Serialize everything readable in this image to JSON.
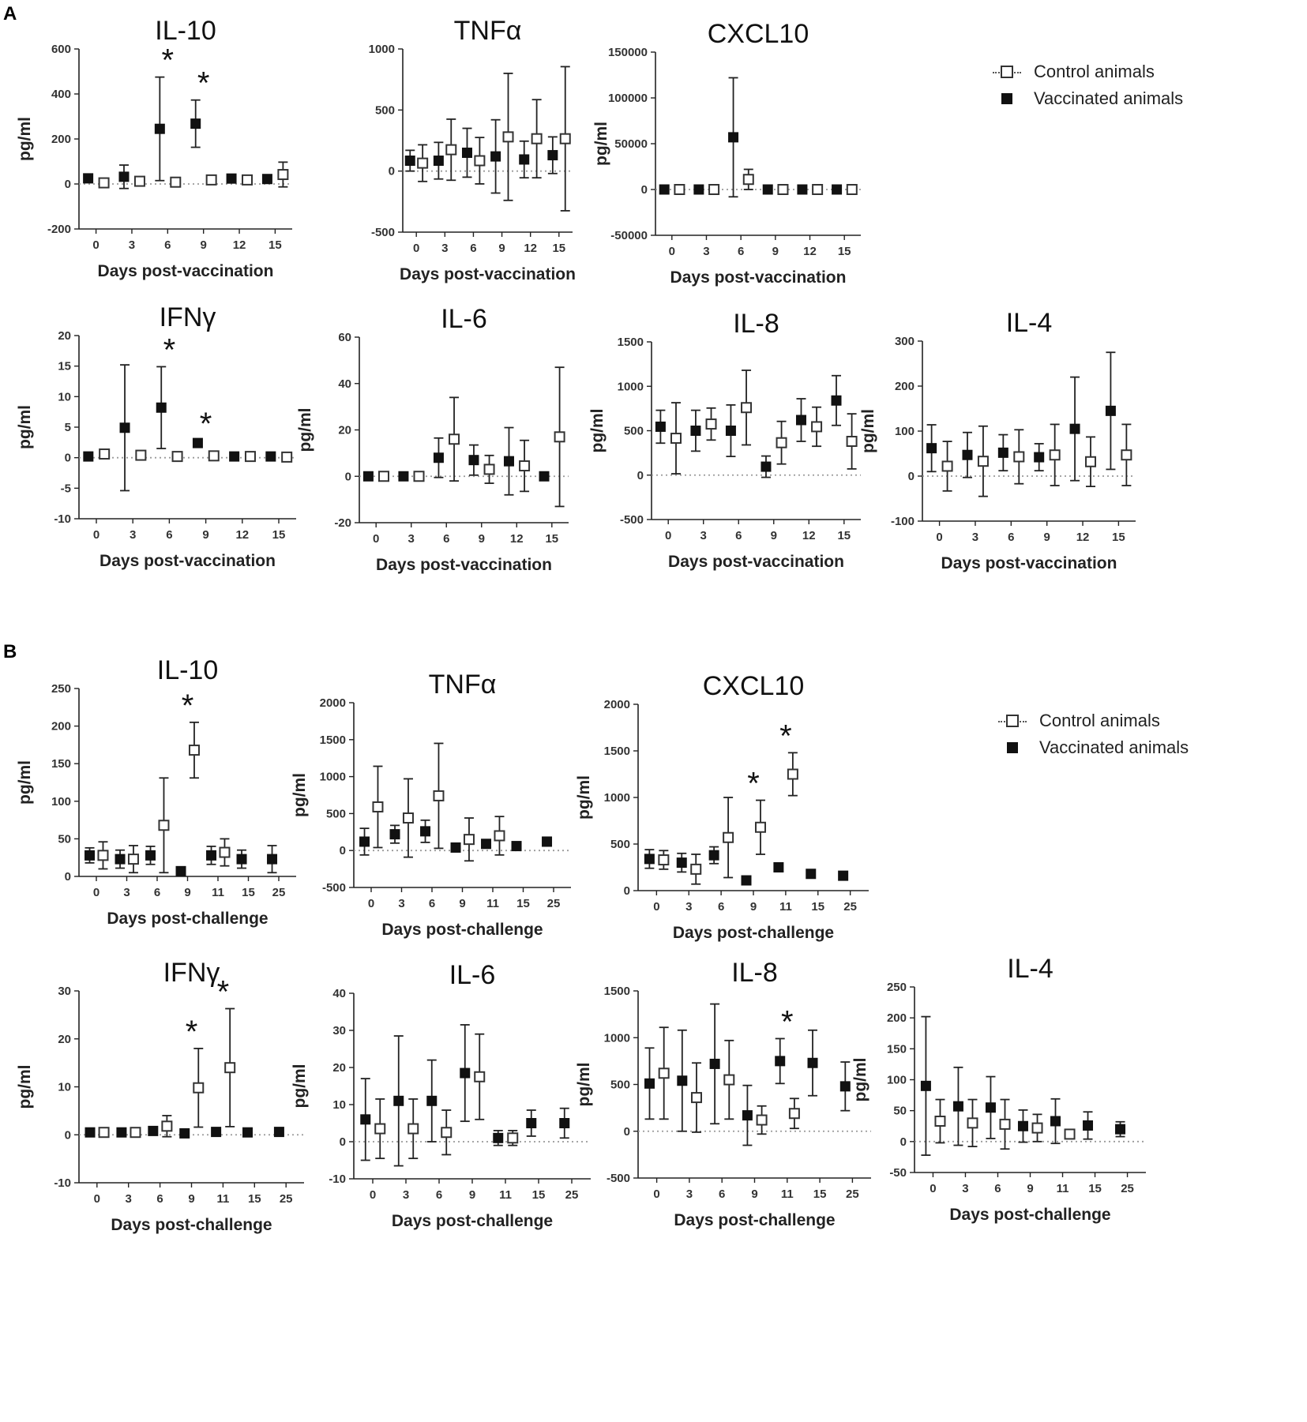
{
  "panel_labels": [
    "A",
    "B"
  ],
  "legend": {
    "control": "Control animals",
    "vaccinated": "Vaccinated animals"
  },
  "colors": {
    "vaccinated": "#111111",
    "control": "#ffffff",
    "stroke": "#333333",
    "zero_line": "#9a9a9a"
  },
  "chart_data": [
    {
      "id": "A-IL10",
      "type": "scatter",
      "title": "IL-10",
      "xlabel": "Days post-vaccination",
      "ylabel": "pg/ml",
      "ylim": [
        -200,
        600
      ],
      "yticks": [
        "-200",
        "0",
        "200",
        "400",
        "600"
      ],
      "xticks": [
        "0",
        "3",
        "6",
        "9",
        "12",
        "15"
      ],
      "series": [
        {
          "name": "Vaccinated animals",
          "values": [
            25,
            32,
            245,
            268,
            24,
            22
          ],
          "err": [
            8,
            52,
            230,
            105,
            8,
            8
          ]
        },
        {
          "name": "Control animals",
          "values": [
            5,
            12,
            8,
            18,
            18,
            42
          ],
          "err": [
            5,
            18,
            8,
            8,
            8,
            55
          ]
        }
      ],
      "stars": [
        {
          "x": "6",
          "label": "*"
        },
        {
          "x": "9",
          "label": "*"
        }
      ]
    },
    {
      "id": "A-TNFa",
      "type": "scatter",
      "title": "TNFα",
      "xlabel": "Days post-vaccination",
      "ylabel": "",
      "ylim": [
        -500,
        1000
      ],
      "yticks": [
        "-500",
        "0",
        "500",
        "1000"
      ],
      "xticks": [
        "0",
        "3",
        "6",
        "9",
        "12",
        "15"
      ],
      "series": [
        {
          "name": "Vaccinated animals",
          "values": [
            85,
            85,
            150,
            120,
            95,
            130
          ],
          "err": [
            85,
            150,
            200,
            300,
            150,
            150
          ]
        },
        {
          "name": "Control animals",
          "values": [
            65,
            175,
            85,
            280,
            265,
            265
          ],
          "err": [
            150,
            250,
            190,
            520,
            320,
            590
          ]
        }
      ],
      "stars": []
    },
    {
      "id": "A-CXCL10",
      "type": "scatter",
      "title": "CXCL10",
      "xlabel": "Days post-vaccination",
      "ylabel": "pg/ml",
      "ylim": [
        -50000,
        150000
      ],
      "yticks": [
        "-50000",
        "0",
        "50000",
        "100000",
        "150000"
      ],
      "xticks": [
        "0",
        "3",
        "6",
        "9",
        "12",
        "15"
      ],
      "series": [
        {
          "name": "Vaccinated animals",
          "values": [
            0,
            0,
            57000,
            0,
            0,
            0
          ],
          "err": [
            0,
            0,
            65000,
            0,
            0,
            0
          ]
        },
        {
          "name": "Control animals",
          "values": [
            0,
            0,
            11000,
            0,
            0,
            0
          ],
          "err": [
            0,
            0,
            11000,
            0,
            0,
            0
          ]
        }
      ],
      "stars": []
    },
    {
      "id": "A-IFNg",
      "type": "scatter",
      "title": "IFNγ",
      "xlabel": "Days post-vaccination",
      "ylabel": "pg/ml",
      "ylim": [
        -10,
        20
      ],
      "yticks": [
        "-10",
        "-5",
        "0",
        "5",
        "10",
        "15",
        "20"
      ],
      "xticks": [
        "0",
        "3",
        "6",
        "9",
        "12",
        "15"
      ],
      "series": [
        {
          "name": "Vaccinated animals",
          "values": [
            0.2,
            4.9,
            8.2,
            2.4,
            0.2,
            0.2
          ],
          "err": [
            0.2,
            10.3,
            6.7,
            0.4,
            0.2,
            0.2
          ]
        },
        {
          "name": "Control animals",
          "values": [
            0.6,
            0.4,
            0.2,
            0.3,
            0.2,
            0.1
          ],
          "err": [
            0.6,
            0.3,
            0.2,
            0.3,
            0.2,
            0.6
          ]
        }
      ],
      "stars": [
        {
          "x": "6",
          "label": "*"
        },
        {
          "x": "9",
          "label": "*"
        }
      ]
    },
    {
      "id": "A-IL6",
      "type": "scatter",
      "title": "IL-6",
      "xlabel": "Days post-vaccination",
      "ylabel": "pg/ml",
      "ylim": [
        -20,
        60
      ],
      "yticks": [
        "-20",
        "0",
        "20",
        "40",
        "60"
      ],
      "xticks": [
        "0",
        "3",
        "6",
        "9",
        "12",
        "15"
      ],
      "series": [
        {
          "name": "Vaccinated animals",
          "values": [
            0,
            0,
            8,
            7,
            6.5,
            0
          ],
          "err": [
            0,
            0,
            8.5,
            6.5,
            14.5,
            0
          ]
        },
        {
          "name": "Control animals",
          "values": [
            0,
            0,
            16,
            3,
            4.5,
            17
          ],
          "err": [
            0,
            0,
            18,
            6,
            11,
            30
          ]
        }
      ],
      "stars": []
    },
    {
      "id": "A-IL8",
      "type": "scatter",
      "title": "IL-8",
      "xlabel": "Days post-vaccination",
      "ylabel": "pg/ml",
      "ylim": [
        -500,
        1500
      ],
      "yticks": [
        "-500",
        "0",
        "500",
        "1000",
        "1500"
      ],
      "xticks": [
        "0",
        "3",
        "6",
        "9",
        "12",
        "15"
      ],
      "series": [
        {
          "name": "Vaccinated animals",
          "values": [
            545,
            500,
            500,
            95,
            620,
            840
          ],
          "err": [
            185,
            230,
            290,
            120,
            240,
            280
          ]
        },
        {
          "name": "Control animals",
          "values": [
            415,
            575,
            760,
            365,
            545,
            380
          ],
          "err": [
            400,
            180,
            420,
            240,
            220,
            310
          ]
        }
      ],
      "stars": []
    },
    {
      "id": "A-IL4",
      "type": "scatter",
      "title": "IL-4",
      "xlabel": "Days post-vaccination",
      "ylabel": "pg/ml",
      "ylim": [
        -100,
        300
      ],
      "yticks": [
        "-100",
        "0",
        "100",
        "200",
        "300"
      ],
      "xticks": [
        "0",
        "3",
        "6",
        "9",
        "12",
        "15"
      ],
      "series": [
        {
          "name": "Vaccinated animals",
          "values": [
            62,
            47,
            52,
            42,
            105,
            145
          ],
          "err": [
            52,
            50,
            40,
            30,
            115,
            130
          ]
        },
        {
          "name": "Control animals",
          "values": [
            22,
            33,
            43,
            47,
            32,
            47
          ],
          "err": [
            55,
            78,
            60,
            68,
            55,
            68
          ]
        }
      ],
      "stars": []
    },
    {
      "id": "B-IL10",
      "type": "scatter",
      "title": "IL-10",
      "xlabel": "Days post-challenge",
      "ylabel": "pg/ml",
      "ylim": [
        0,
        250
      ],
      "yticks": [
        "0",
        "50",
        "100",
        "150",
        "200",
        "250"
      ],
      "xticks": [
        "0",
        "3",
        "6",
        "9",
        "11",
        "15",
        "25"
      ],
      "series": [
        {
          "name": "Vaccinated animals",
          "values": [
            28,
            23,
            28,
            7,
            28,
            23,
            23
          ],
          "err": [
            10,
            12,
            12,
            2,
            12,
            12,
            18
          ]
        },
        {
          "name": "Control animals",
          "values": [
            28,
            23,
            68,
            168,
            32,
            null,
            null
          ],
          "err": [
            18,
            18,
            63,
            37,
            18,
            null,
            null
          ]
        }
      ],
      "stars": [
        {
          "x": "9",
          "label": "*"
        }
      ]
    },
    {
      "id": "B-TNFa",
      "type": "scatter",
      "title": "TNFα",
      "xlabel": "Days post-challenge",
      "ylabel": "pg/ml",
      "ylim": [
        -500,
        2000
      ],
      "yticks": [
        "-500",
        "0",
        "500",
        "1000",
        "1500",
        "2000"
      ],
      "xticks": [
        "0",
        "3",
        "6",
        "9",
        "11",
        "15",
        "25"
      ],
      "series": [
        {
          "name": "Vaccinated animals",
          "values": [
            120,
            220,
            260,
            40,
            90,
            60,
            120
          ],
          "err": [
            180,
            120,
            150,
            20,
            40,
            20,
            60
          ]
        },
        {
          "name": "Control animals",
          "values": [
            590,
            440,
            740,
            150,
            200,
            null,
            null
          ],
          "err": [
            550,
            530,
            710,
            290,
            260,
            null,
            null
          ]
        }
      ],
      "stars": []
    },
    {
      "id": "B-CXCL10",
      "type": "scatter",
      "title": "CXCL10",
      "xlabel": "Days post-challenge",
      "ylabel": "pg/ml",
      "ylim": [
        0,
        2000
      ],
      "yticks": [
        "0",
        "500",
        "1000",
        "1500",
        "2000"
      ],
      "xticks": [
        "0",
        "3",
        "6",
        "9",
        "11",
        "15",
        "25"
      ],
      "series": [
        {
          "name": "Vaccinated animals",
          "values": [
            340,
            300,
            380,
            110,
            250,
            180,
            160
          ],
          "err": [
            100,
            100,
            90,
            20,
            30,
            30,
            30
          ]
        },
        {
          "name": "Control animals",
          "values": [
            330,
            230,
            570,
            680,
            1250,
            null,
            null
          ],
          "err": [
            100,
            160,
            430,
            290,
            230,
            null,
            null
          ]
        }
      ],
      "stars": [
        {
          "x": "9",
          "label": "*"
        },
        {
          "x": "11",
          "label": "*"
        }
      ]
    },
    {
      "id": "B-IFNg",
      "type": "scatter",
      "title": "IFNγ",
      "xlabel": "Days post-challenge",
      "ylabel": "pg/ml",
      "ylim": [
        -10,
        30
      ],
      "yticks": [
        "-10",
        "0",
        "10",
        "20",
        "30"
      ],
      "xticks": [
        "0",
        "3",
        "6",
        "9",
        "11",
        "15",
        "25"
      ],
      "series": [
        {
          "name": "Vaccinated animals",
          "values": [
            0.5,
            0.5,
            0.8,
            0.3,
            0.6,
            0.5,
            0.6
          ],
          "err": [
            0.3,
            0.3,
            0.4,
            0.2,
            0.3,
            0.3,
            0.3
          ]
        },
        {
          "name": "Control animals",
          "values": [
            0.5,
            0.5,
            1.8,
            9.8,
            14,
            null,
            null
          ],
          "err": [
            0.3,
            0.3,
            2.2,
            8.2,
            12.3,
            null,
            null
          ]
        }
      ],
      "stars": [
        {
          "x": "9",
          "label": "*"
        },
        {
          "x": "11",
          "label": "*"
        }
      ]
    },
    {
      "id": "B-IL6",
      "type": "scatter",
      "title": "IL-6",
      "xlabel": "Days post-challenge",
      "ylabel": "pg/ml",
      "ylim": [
        -10,
        40
      ],
      "yticks": [
        "-10",
        "0",
        "10",
        "20",
        "30",
        "40"
      ],
      "xticks": [
        "0",
        "3",
        "6",
        "9",
        "11",
        "15",
        "25"
      ],
      "series": [
        {
          "name": "Vaccinated animals",
          "values": [
            6,
            11,
            11,
            18.5,
            1,
            5,
            5
          ],
          "err": [
            11,
            17.5,
            11,
            13,
            2,
            3.5,
            4
          ]
        },
        {
          "name": "Control animals",
          "values": [
            3.5,
            3.5,
            2.5,
            17.5,
            1,
            null,
            null
          ],
          "err": [
            8,
            8,
            6,
            11.5,
            2,
            null,
            null
          ]
        }
      ],
      "stars": []
    },
    {
      "id": "B-IL8",
      "type": "scatter",
      "title": "IL-8",
      "xlabel": "Days post-challenge",
      "ylabel": "pg/ml",
      "ylim": [
        -500,
        1500
      ],
      "yticks": [
        "-500",
        "0",
        "500",
        "1000",
        "1500"
      ],
      "xticks": [
        "0",
        "3",
        "6",
        "9",
        "11",
        "15",
        "25"
      ],
      "series": [
        {
          "name": "Vaccinated animals",
          "values": [
            510,
            540,
            720,
            170,
            750,
            730,
            480
          ],
          "err": [
            380,
            540,
            640,
            320,
            240,
            350,
            260
          ]
        },
        {
          "name": "Control animals",
          "values": [
            620,
            360,
            550,
            120,
            190,
            null,
            null
          ],
          "err": [
            490,
            370,
            420,
            150,
            160,
            null,
            null
          ]
        }
      ],
      "stars": [
        {
          "x": "11",
          "label": "*"
        }
      ]
    },
    {
      "id": "B-IL4",
      "type": "scatter",
      "title": "IL-4",
      "xlabel": "Days post-challenge",
      "ylabel": "pg/ml",
      "ylim": [
        -50,
        250
      ],
      "yticks": [
        "-50",
        "0",
        "50",
        "100",
        "150",
        "200",
        "250"
      ],
      "xticks": [
        "0",
        "3",
        "6",
        "9",
        "11",
        "15",
        "25"
      ],
      "series": [
        {
          "name": "Vaccinated animals",
          "values": [
            90,
            57,
            55,
            25,
            33,
            26,
            20
          ],
          "err": [
            112,
            63,
            50,
            26,
            36,
            22,
            12
          ]
        },
        {
          "name": "Control animals",
          "values": [
            33,
            30,
            28,
            22,
            12,
            null,
            null
          ],
          "err": [
            35,
            38,
            40,
            22,
            5,
            null,
            null
          ]
        }
      ],
      "stars": []
    }
  ]
}
